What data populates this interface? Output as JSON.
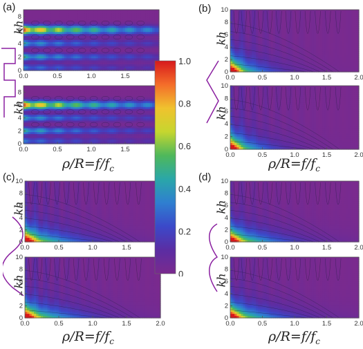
{
  "panel_labels": [
    "(a)",
    "(b)",
    "(c)",
    "(d)"
  ],
  "x_axis_title": "ρ/R=f/f",
  "x_axis_subscript": "c",
  "y_axis_title": "kh",
  "colorbar": {
    "ticks": [
      "1.0",
      "0.8",
      "0.6",
      "0.4",
      "0.2",
      "0"
    ],
    "colors": [
      "#d7191c",
      "#f46d2a",
      "#f0c22e",
      "#c6d62f",
      "#4fb85b",
      "#2aa7a8",
      "#2f7fd0",
      "#3b49c9",
      "#5b2da3",
      "#7a2a8e"
    ]
  },
  "chart_data": [
    {
      "panel": "(a)",
      "type": "heatmap",
      "position": "top",
      "xlim": [
        0,
        2.0
      ],
      "ylim": [
        0,
        9
      ],
      "x_ticks": [
        "0.0",
        "0.5",
        "1.0",
        "1.5",
        "2.0"
      ],
      "y_ticks": [
        "0",
        "2",
        "4",
        "6",
        "8"
      ],
      "ylabel": "kh"
    },
    {
      "panel": "(a)",
      "type": "heatmap",
      "position": "bottom",
      "xlim": [
        0,
        2.0
      ],
      "ylim": [
        0,
        9
      ],
      "x_ticks": [
        "0.0",
        "0.5",
        "1.0",
        "1.5",
        "2.0"
      ],
      "y_ticks": [
        "0",
        "2",
        "4",
        "6",
        "8"
      ],
      "ylabel": "kh"
    },
    {
      "panel": "(b)",
      "type": "heatmap",
      "position": "top",
      "xlim": [
        0,
        2.0
      ],
      "ylim": [
        0,
        10
      ],
      "x_ticks": [
        "0.0",
        "0.5",
        "1.0",
        "1.5",
        "2.0"
      ],
      "y_ticks": [
        "0",
        "2",
        "4",
        "6",
        "8",
        "10"
      ],
      "ylabel": "kh"
    },
    {
      "panel": "(b)",
      "type": "heatmap",
      "position": "bottom",
      "xlim": [
        0,
        2.0
      ],
      "ylim": [
        0,
        10
      ],
      "x_ticks": [
        "0.0",
        "0.5",
        "1.0",
        "1.5",
        "2.0"
      ],
      "y_ticks": [
        "0",
        "2",
        "4",
        "6",
        "8",
        "10"
      ],
      "ylabel": "kh"
    },
    {
      "panel": "(c)",
      "type": "heatmap",
      "position": "top",
      "xlim": [
        0,
        2.0
      ],
      "ylim": [
        0,
        10
      ],
      "x_ticks": [
        "0.0",
        "0.5",
        "1.0",
        "1.5",
        "2.0"
      ],
      "y_ticks": [
        "0",
        "2",
        "4",
        "6",
        "8",
        "10"
      ],
      "ylabel": "kh"
    },
    {
      "panel": "(c)",
      "type": "heatmap",
      "position": "bottom",
      "xlim": [
        0,
        2.0
      ],
      "ylim": [
        0,
        10
      ],
      "x_ticks": [
        "0.0",
        "0.5",
        "1.0",
        "1.5",
        "2.0"
      ],
      "y_ticks": [
        "0",
        "2",
        "4",
        "6",
        "8",
        "10"
      ],
      "ylabel": "kh"
    },
    {
      "panel": "(d)",
      "type": "heatmap",
      "position": "top",
      "xlim": [
        0,
        2.0
      ],
      "ylim": [
        0,
        10
      ],
      "x_ticks": [
        "0.0",
        "0.5",
        "1.0",
        "1.5",
        "2.0"
      ],
      "y_ticks": [
        "0",
        "2",
        "4",
        "6",
        "8",
        "10"
      ],
      "ylabel": "kh"
    },
    {
      "panel": "(d)",
      "type": "heatmap",
      "position": "bottom",
      "xlim": [
        0,
        2.0
      ],
      "ylim": [
        0,
        10
      ],
      "x_ticks": [
        "0.0",
        "0.5",
        "1.0",
        "1.5",
        "2.0"
      ],
      "y_ticks": [
        "0",
        "2",
        "4",
        "6",
        "8",
        "10"
      ],
      "ylabel": "kh"
    }
  ]
}
